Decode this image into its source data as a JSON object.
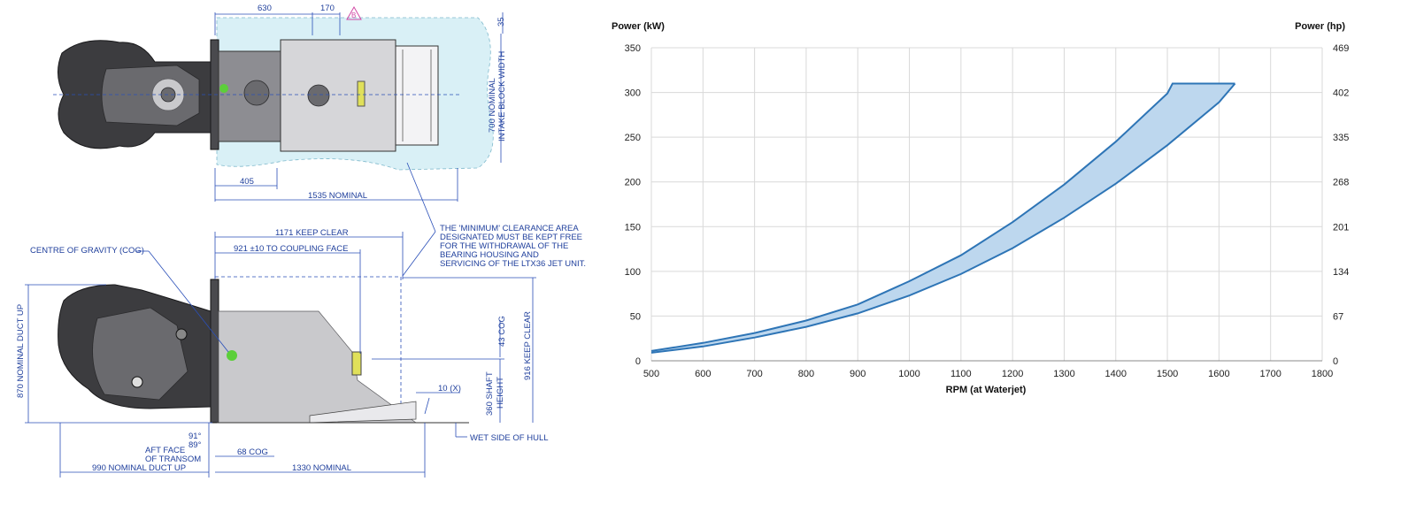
{
  "drawing": {
    "top_view": {
      "dim_630": "630",
      "dim_170": "170",
      "marker_b": "B",
      "dim_35": "35",
      "dim_700": "700 NOMINAL",
      "dim_700_sub": "INTAKE BLOCK WIDTH",
      "dim_405": "405",
      "dim_1535": "1535 NOMINAL"
    },
    "note": {
      "lines": [
        "THE 'MINIMUM' CLEARANCE AREA",
        "DESIGNATED MUST BE KEPT FREE",
        "FOR THE WITHDRAWAL OF THE",
        "BEARING HOUSING AND",
        "SERVICING OF THE LTX36 JET UNIT."
      ]
    },
    "side_view": {
      "dim_1171": "1171 KEEP CLEAR",
      "dim_921": "921 ±10 TO COUPLING FACE",
      "cog_label": "CENTRE OF GRAVITY (COG)",
      "dim_870": "870 NOMINAL DUCT UP",
      "dim_43": "43 COG",
      "dim_916": "916 KEEP CLEAR",
      "dim_360": "360 SHAFT",
      "dim_360_sub": "HEIGHT",
      "dim_10": "10 (X)",
      "wet_side": "WET SIDE OF HULL",
      "angle_91": "91°",
      "angle_89": "89°",
      "aft_face": "AFT FACE",
      "aft_face_sub": "OF TRANSOM",
      "dim_68": "68 COG",
      "dim_990": "990 NOMINAL DUCT UP",
      "dim_1330": "1330 NOMINAL"
    }
  },
  "chart_data": {
    "type": "area",
    "y_left_label": "Power (kW)",
    "y_right_label": "Power (hp)",
    "xlabel": "RPM (at Waterjet)",
    "xlim": [
      500,
      1800
    ],
    "ylim": [
      0,
      350
    ],
    "x_ticks": [
      500,
      600,
      700,
      800,
      900,
      1000,
      1100,
      1200,
      1300,
      1400,
      1500,
      1600,
      1700,
      1800
    ],
    "y_ticks_left": [
      0,
      50,
      100,
      150,
      200,
      250,
      300,
      350
    ],
    "y_ticks_right": [
      "0",
      "67",
      "134",
      "201",
      "268",
      "335",
      "402",
      "469"
    ],
    "grid": true,
    "line_color": "#2e75b6",
    "fill_color": "#bdd7ee",
    "series": [
      {
        "x": [
          500,
          600,
          700,
          800,
          900,
          1000,
          1100,
          1200,
          1300,
          1400,
          1500,
          1510,
          1631
        ],
        "values": [
          11,
          20,
          31,
          45,
          63,
          89,
          118,
          155,
          197,
          245,
          299,
          310,
          310
        ]
      },
      {
        "x": [
          500,
          600,
          700,
          800,
          900,
          1000,
          1100,
          1200,
          1300,
          1400,
          1500,
          1600,
          1631
        ],
        "values": [
          9,
          16,
          26,
          38,
          53,
          73,
          97,
          126,
          160,
          198,
          241,
          289,
          310
        ]
      }
    ]
  }
}
